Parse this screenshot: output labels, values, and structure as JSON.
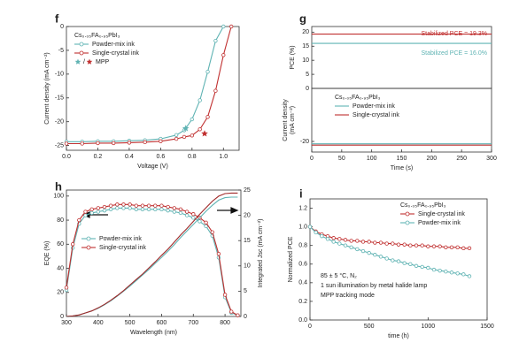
{
  "chart_data": [
    {
      "type": "line",
      "panel_label": "f",
      "xlabel": "Voltage (V)",
      "ylabel": "Current density (mA cm⁻²)",
      "xlim": [
        0,
        1.1
      ],
      "ylim": [
        -26,
        0
      ],
      "xticks": [
        {
          "value": 0,
          "label": "0.0"
        },
        0.2,
        0.4,
        0.6,
        0.8,
        {
          "value": 1,
          "label": "1.0"
        }
      ],
      "yticks": [
        -25,
        -20,
        -15,
        -10,
        -5,
        0
      ],
      "legend": "upper left",
      "legend_title": "Cs₀.₀₅FA₀.₉₅PbI₃",
      "series": [
        {
          "name": "Powder-mix ink",
          "color": "#5fb3b3",
          "marker": "circle",
          "x": [
            0,
            0.1,
            0.2,
            0.3,
            0.4,
            0.5,
            0.6,
            0.7,
            0.75,
            0.8,
            0.85,
            0.9,
            0.95,
            1.0
          ],
          "values": [
            -24.2,
            -24.2,
            -24.1,
            -24.1,
            -24.0,
            -23.9,
            -23.6,
            -22.8,
            -21.8,
            -19.5,
            -15.5,
            -9.5,
            -3.0,
            0
          ]
        },
        {
          "name": "Single-crystal ink",
          "color": "#c03030",
          "marker": "circle",
          "x": [
            0,
            0.1,
            0.2,
            0.3,
            0.4,
            0.5,
            0.6,
            0.7,
            0.75,
            0.8,
            0.85,
            0.9,
            0.95,
            1.0,
            1.05
          ],
          "values": [
            -24.6,
            -24.6,
            -24.5,
            -24.5,
            -24.4,
            -24.3,
            -24.1,
            -23.6,
            -23.2,
            -22.9,
            -21.6,
            -19.0,
            -13.5,
            -6.0,
            0
          ]
        }
      ],
      "mpp_separator": "/",
      "mpp_label": "MPP",
      "mpp": [
        {
          "x": 0.76,
          "y": -21.4,
          "color": "#5fb3b3"
        },
        {
          "x": 0.88,
          "y": -22.5,
          "color": "#c03030"
        }
      ]
    },
    {
      "type": "line",
      "panel_label": "g",
      "ylabel": "PCE (%)",
      "xlim": [
        0,
        300
      ],
      "ylim": [
        0,
        22
      ],
      "yticks": [
        0,
        5,
        10,
        15,
        20
      ],
      "x": [
        0,
        50,
        100,
        150,
        200,
        250,
        300
      ],
      "series": [
        {
          "color": "#c03030",
          "values": [
            19.3,
            19.3,
            19.3,
            19.3,
            19.3,
            19.3,
            19.3
          ]
        },
        {
          "color": "#5fb3b3",
          "values": [
            16.0,
            16.0,
            16.0,
            16.0,
            16.0,
            16.0,
            16.0
          ]
        }
      ],
      "annotations": [
        {
          "text": "Stabilized PCE = 19.3%",
          "color": "#c03030"
        },
        {
          "text": "Stabilized PCE = 16.0%",
          "color": "#5fb3b3"
        }
      ]
    },
    {
      "type": "line",
      "xlabel": "Time (s)",
      "ylabel": [
        "Current density",
        "(mA cm⁻²)"
      ],
      "xlim": [
        0,
        300
      ],
      "ylim": [
        -24,
        0
      ],
      "xticks": [
        0,
        50,
        100,
        150,
        200,
        250,
        300
      ],
      "yticks": [
        -20
      ],
      "x": [
        0,
        50,
        100,
        150,
        200,
        250,
        300
      ],
      "legend": "upper left",
      "legend_title": "Cs₀.₀₅FA₀.₉₅PbI₃",
      "series": [
        {
          "name": "Powder-mix ink",
          "color": "#5fb3b3",
          "values": [
            -20.9,
            -20.9,
            -20.9,
            -20.9,
            -20.9,
            -20.9,
            -20.9
          ]
        },
        {
          "name": "Single-crystal ink",
          "color": "#c03030",
          "values": [
            -21.4,
            -21.4,
            -21.4,
            -21.4,
            -21.4,
            -21.4,
            -21.4
          ]
        }
      ]
    },
    {
      "type": "line",
      "panel_label": "h",
      "xlabel": "Wavelength (nm)",
      "ylabel": "EQE (%)",
      "y2label": "Integrated Jsc (mA cm⁻²)",
      "xlim": [
        300,
        850
      ],
      "ylim": [
        0,
        105
      ],
      "y2lim": [
        0,
        25
      ],
      "xticks": [
        300,
        400,
        500,
        600,
        700,
        800
      ],
      "yticks": [
        0,
        20,
        40,
        60,
        80,
        100
      ],
      "y2ticks": [
        0,
        5,
        10,
        15,
        20,
        25
      ],
      "legend": "lower left",
      "x": [
        300,
        320,
        340,
        360,
        380,
        400,
        420,
        440,
        460,
        480,
        500,
        520,
        540,
        560,
        580,
        600,
        620,
        640,
        660,
        680,
        700,
        720,
        740,
        760,
        780,
        800,
        820,
        840
      ],
      "series": [
        {
          "name": "Powder-mix ink",
          "color": "#5fb3b3",
          "marker": "circle",
          "values": [
            22,
            57,
            77,
            84,
            86,
            87,
            88,
            89,
            90,
            90,
            90,
            89,
            89,
            89,
            89,
            89,
            88,
            87,
            86,
            84,
            82,
            79,
            75,
            67,
            49,
            16,
            3,
            1
          ]
        },
        {
          "name": "Single-crystal ink",
          "color": "#c03030",
          "marker": "circle",
          "values": [
            24,
            60,
            80,
            87,
            89,
            90,
            91,
            92,
            93,
            93,
            93,
            92,
            92,
            92,
            92,
            92,
            91,
            90,
            89,
            87,
            85,
            82,
            78,
            70,
            52,
            18,
            4,
            1
          ]
        },
        {
          "color": "#5fb3b3",
          "axis": "y2",
          "values": [
            0,
            0.1,
            0.3,
            0.7,
            1.1,
            1.6,
            2.3,
            3.1,
            4.0,
            5.0,
            6.0,
            7.1,
            8.2,
            9.3,
            10.5,
            11.7,
            12.9,
            14.2,
            15.6,
            16.9,
            18.2,
            19.5,
            20.8,
            22.0,
            23.0,
            23.5,
            23.6,
            23.6
          ]
        },
        {
          "color": "#a02828",
          "axis": "y2",
          "values": [
            0,
            0.1,
            0.3,
            0.7,
            1.1,
            1.7,
            2.4,
            3.2,
            4.1,
            5.1,
            6.2,
            7.3,
            8.4,
            9.6,
            10.8,
            12.1,
            13.3,
            14.7,
            16.1,
            17.4,
            18.8,
            20.2,
            21.5,
            22.8,
            23.8,
            24.3,
            24.4,
            24.4
          ]
        }
      ]
    },
    {
      "type": "line",
      "panel_label": "i",
      "xlabel": "time (h)",
      "ylabel": "Normalized PCE",
      "xlim": [
        0,
        1500
      ],
      "ylim": [
        0,
        1.3
      ],
      "xticks": [
        0,
        500,
        1000,
        1500
      ],
      "yticks": [
        {
          "value": 0,
          "label": "0.0"
        },
        0.2,
        0.4,
        0.6,
        0.8,
        {
          "value": 1,
          "label": "1.0"
        },
        1.2
      ],
      "legend": "upper right",
      "legend_title": "Cs₀.₀₅FA₀.₉₅PbI₃",
      "x": [
        0,
        50,
        100,
        150,
        200,
        250,
        300,
        350,
        400,
        450,
        500,
        550,
        600,
        650,
        700,
        750,
        800,
        850,
        900,
        950,
        1000,
        1050,
        1100,
        1150,
        1200,
        1250,
        1300,
        1350
      ],
      "series": [
        {
          "name": "Single-crystal ink",
          "color": "#c03030",
          "marker": "circle",
          "values": [
            1.0,
            0.95,
            0.92,
            0.9,
            0.88,
            0.87,
            0.86,
            0.85,
            0.85,
            0.84,
            0.84,
            0.83,
            0.83,
            0.82,
            0.82,
            0.81,
            0.81,
            0.8,
            0.8,
            0.8,
            0.79,
            0.79,
            0.79,
            0.78,
            0.78,
            0.78,
            0.77,
            0.77
          ]
        },
        {
          "name": "Powder-mix ink",
          "color": "#5fb3b3",
          "marker": "circle",
          "values": [
            1.0,
            0.94,
            0.9,
            0.87,
            0.84,
            0.82,
            0.8,
            0.78,
            0.76,
            0.74,
            0.72,
            0.7,
            0.68,
            0.66,
            0.64,
            0.63,
            0.61,
            0.6,
            0.58,
            0.57,
            0.56,
            0.54,
            0.53,
            0.52,
            0.51,
            0.5,
            0.49,
            0.47
          ]
        }
      ],
      "annotations": [
        {
          "text": "85 ± 5 °C, N₂"
        },
        {
          "text": "1 sun illumination by metal halide lamp"
        },
        {
          "text": "MPP tracking mode"
        }
      ]
    }
  ]
}
